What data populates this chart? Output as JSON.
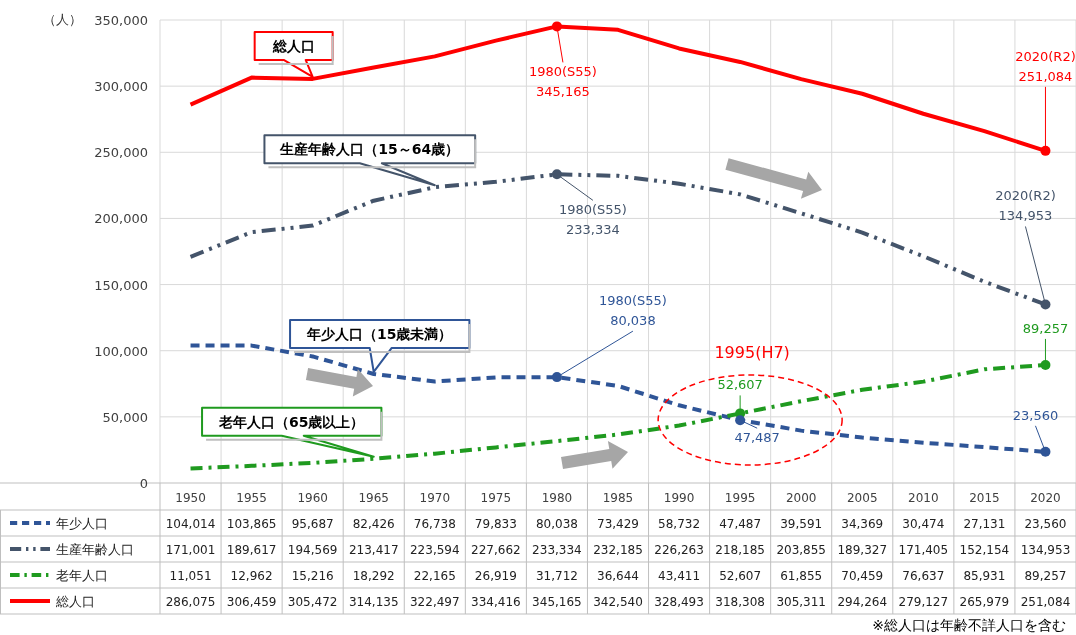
{
  "chart_data": {
    "type": "line",
    "ylabel": "（人）",
    "categories": [
      "1950",
      "1955",
      "1960",
      "1965",
      "1970",
      "1975",
      "1980",
      "1985",
      "1990",
      "1995",
      "2000",
      "2005",
      "2010",
      "2015",
      "2020"
    ],
    "series": [
      {
        "name": "年少人口",
        "color": "#2f5597",
        "line_style": "dashed",
        "values": [
          104014,
          103865,
          95687,
          82426,
          76738,
          79833,
          80038,
          73429,
          58732,
          47487,
          39591,
          34369,
          30474,
          27131,
          23560
        ],
        "value_labels": [
          "104,014",
          "103,865",
          "95,687",
          "82,426",
          "76,738",
          "79,833",
          "80,038",
          "73,429",
          "58,732",
          "47,487",
          "39,591",
          "34,369",
          "30,474",
          "27,131",
          "23,560"
        ]
      },
      {
        "name": "生産年齢人口",
        "color": "#44546a",
        "line_style": "dashed",
        "values": [
          171001,
          189617,
          194569,
          213417,
          223594,
          227662,
          233334,
          232185,
          226263,
          218185,
          203855,
          189327,
          171405,
          152154,
          134953
        ],
        "value_labels": [
          "171,001",
          "189,617",
          "194,569",
          "213,417",
          "223,594",
          "227,662",
          "233,334",
          "232,185",
          "226,263",
          "218,185",
          "203,855",
          "189,327",
          "171,405",
          "152,154",
          "134,953"
        ]
      },
      {
        "name": "老年人口",
        "color": "#1f9a1f",
        "line_style": "dashed",
        "values": [
          11051,
          12962,
          15216,
          18292,
          22165,
          26919,
          31712,
          36644,
          43411,
          52607,
          61855,
          70459,
          76637,
          85931,
          89257
        ],
        "value_labels": [
          "11,051",
          "12,962",
          "15,216",
          "18,292",
          "22,165",
          "26,919",
          "31,712",
          "36,644",
          "43,411",
          "52,607",
          "61,855",
          "70,459",
          "76,637",
          "85,931",
          "89,257"
        ]
      },
      {
        "name": "総人口",
        "color": "#ff0000",
        "line_style": "solid",
        "values": [
          286075,
          306459,
          305472,
          314135,
          322497,
          334416,
          345165,
          342540,
          328493,
          318308,
          305311,
          294264,
          279127,
          265979,
          251084
        ],
        "value_labels": [
          "286,075",
          "306,459",
          "305,472",
          "314,135",
          "322,497",
          "334,416",
          "345,165",
          "342,540",
          "328,493",
          "318,308",
          "305,311",
          "294,264",
          "279,127",
          "265,979",
          "251,084"
        ]
      }
    ],
    "ylim": [
      0,
      350000
    ],
    "yticks": [
      0,
      {
        "value": 50000,
        "label": "50,000"
      },
      {
        "value": 100000,
        "label": "100,000"
      },
      {
        "value": 150000,
        "label": "150,000"
      },
      {
        "value": 200000,
        "label": "200,000"
      },
      {
        "value": 250000,
        "label": "250,000"
      },
      {
        "value": 300000,
        "label": "300,000"
      },
      {
        "value": 350000,
        "label": "350,000"
      }
    ],
    "grid": true,
    "legend": "bottom",
    "marker": "none",
    "annotations": [
      {
        "text": "総人口",
        "x": "1960",
        "y": 305472
      },
      {
        "text": "生産年齢人口（15～64歳）",
        "x": "1970",
        "y": 223594
      },
      {
        "text": "年少人口（15歳未満）",
        "x": "1965",
        "y": 82426
      },
      {
        "text": "老年人口（65歳以上）",
        "x": "1965",
        "y": 18292
      },
      {
        "text": "1980(S55)\n345,165",
        "x": "1980",
        "y": 345165
      },
      {
        "text": "2020(R2)\n251,084",
        "x": "2020",
        "y": 251084
      },
      {
        "text": "1980(S55)\n233,334",
        "x": "1980",
        "y": 233334
      },
      {
        "text": "2020(R2)\n134,953",
        "x": "2020",
        "y": 134953
      },
      {
        "text": "1980(S55)\n80,038",
        "x": "1980",
        "y": 80038
      },
      {
        "text": "23,560",
        "x": "2020",
        "y": 23560
      },
      {
        "text": "89,257",
        "x": "2020",
        "y": 89257
      },
      {
        "text": "52,607",
        "x": "1995",
        "y": 52607
      },
      {
        "text": "47,487",
        "x": "1995",
        "y": 47487
      },
      "1995(H7)",
      "※総人口は年齢不詳人口を含む"
    ]
  }
}
